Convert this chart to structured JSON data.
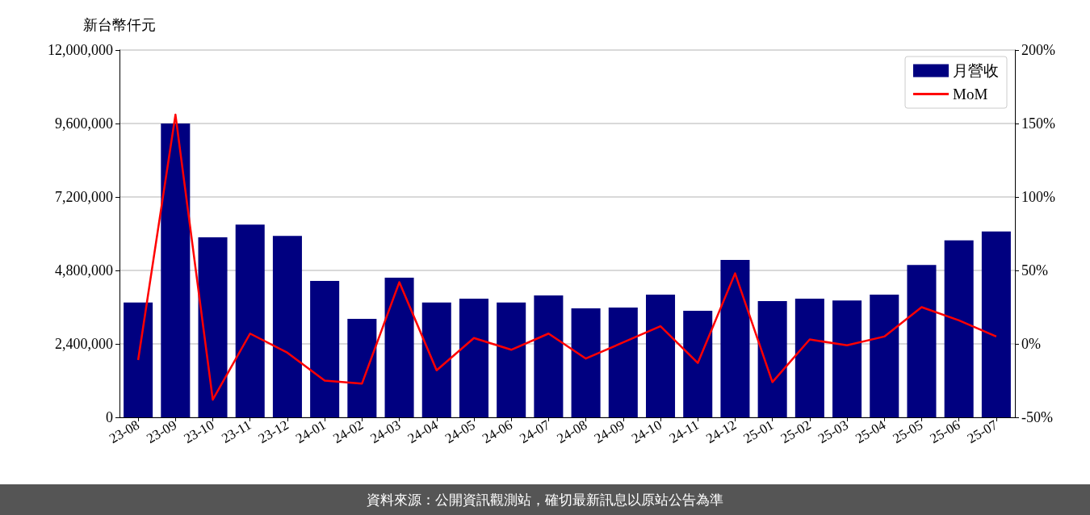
{
  "chart_data": {
    "type": "bar",
    "ylabel": "新台幣仟元",
    "categories": [
      "23-08",
      "23-09",
      "23-10",
      "23-11",
      "23-12",
      "24-01",
      "24-02",
      "24-03",
      "24-04",
      "24-05",
      "24-06",
      "24-07",
      "24-08",
      "24-09",
      "24-10",
      "24-11",
      "24-12",
      "25-01",
      "25-02",
      "25-03",
      "25-04",
      "25-05",
      "25-06",
      "25-07"
    ],
    "series": [
      {
        "name": "月營收",
        "color": "#000080",
        "values": [
          3750000,
          9600000,
          5880000,
          6300000,
          5930000,
          4460000,
          3220000,
          4560000,
          3750000,
          3880000,
          3750000,
          3980000,
          3560000,
          3590000,
          4010000,
          3480000,
          5140000,
          3800000,
          3880000,
          3820000,
          4010000,
          4980000,
          5780000,
          6070000
        ]
      },
      {
        "name": "MoM",
        "type": "line",
        "axis": "y2",
        "color": "#ff0000",
        "values": [
          -11,
          156,
          -38,
          7,
          -6,
          -25,
          -27,
          42,
          -18,
          4,
          -4,
          7,
          -10,
          1,
          12,
          -13,
          48,
          -26,
          3,
          -1,
          5,
          25,
          16,
          5
        ]
      }
    ],
    "ylim": [
      0,
      12000000
    ],
    "yticks": [
      {
        "value": 0,
        "label": "0"
      },
      {
        "value": 2400000,
        "label": "2,400,000"
      },
      {
        "value": 4800000,
        "label": "4,800,000"
      },
      {
        "value": 7200000,
        "label": "7,200,000"
      },
      {
        "value": 9600000,
        "label": "9,600,000"
      },
      {
        "value": 12000000,
        "label": "12,000,000"
      }
    ],
    "y2lim": [
      -50,
      200
    ],
    "y2ticks": [
      {
        "value": -50,
        "label": "-50%"
      },
      {
        "value": 0,
        "label": "0%"
      },
      {
        "value": 50,
        "label": "50%"
      },
      {
        "value": 100,
        "label": "100%"
      },
      {
        "value": 150,
        "label": "150%"
      },
      {
        "value": 200,
        "label": "200%"
      }
    ],
    "grid": "y",
    "legend": "top right",
    "marker": "none",
    "line_style": "solid",
    "annotations": [
      "資料來源：公開資訊觀測站，確切最新訊息以原站公告為準"
    ]
  }
}
